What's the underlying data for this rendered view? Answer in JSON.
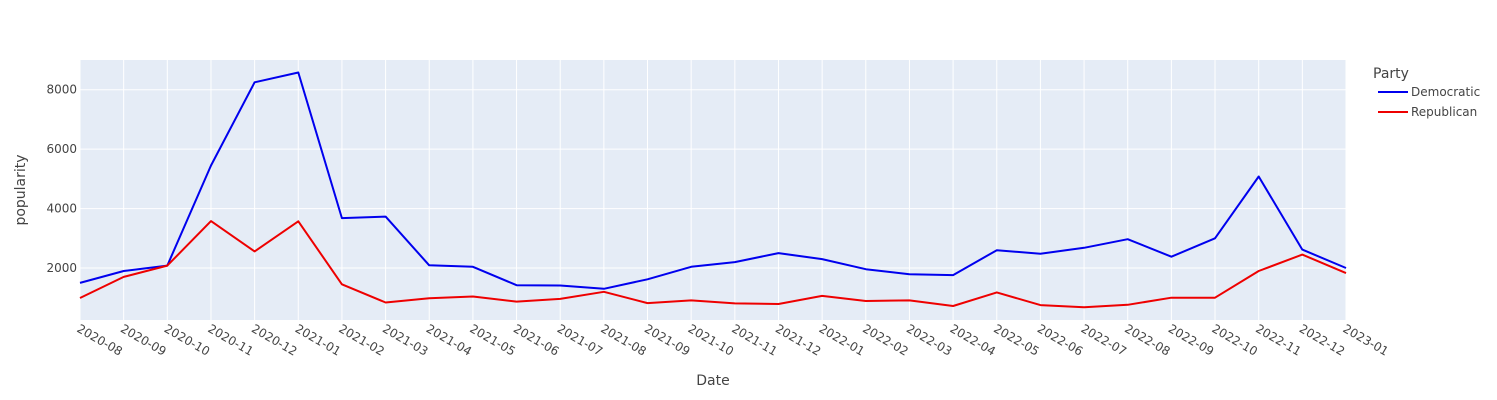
{
  "chart_data": {
    "type": "line",
    "xlabel": "Date",
    "ylabel": "popularity",
    "x_ticks": [
      "2020-08",
      "2020-09",
      "2020-10",
      "2020-11",
      "2020-12",
      "2021-01",
      "2021-02",
      "2021-03",
      "2021-04",
      "2021-05",
      "2021-06",
      "2021-07",
      "2021-08",
      "2021-09",
      "2021-10",
      "2021-11",
      "2021-12",
      "2022-01",
      "2022-02",
      "2022-03",
      "2022-04",
      "2022-05",
      "2022-06",
      "2022-07",
      "2022-08",
      "2022-09",
      "2022-10",
      "2022-11",
      "2022-12",
      "2023-01"
    ],
    "y_ticks": [
      2000,
      4000,
      6000,
      8000
    ],
    "y_tick_labels": [
      "2000",
      "4000",
      "6000",
      "8000"
    ],
    "ylim": [
      250,
      9000
    ],
    "grid": true,
    "legend": {
      "title": "Party",
      "placement": "right"
    },
    "x": [
      "2020-08",
      "2020-09",
      "2020-10",
      "2020-11",
      "2020-12",
      "2021-01",
      "2021-02",
      "2021-03",
      "2021-04",
      "2021-05",
      "2021-06",
      "2021-07",
      "2021-08",
      "2021-09",
      "2021-10",
      "2021-11",
      "2021-12",
      "2022-01",
      "2022-02",
      "2022-03",
      "2022-04",
      "2022-05",
      "2022-06",
      "2022-07",
      "2022-08",
      "2022-09",
      "2022-10",
      "2022-11",
      "2022-12",
      "2023-01"
    ],
    "series": [
      {
        "name": "Democratic",
        "color": "#0000ee",
        "values": [
          1500,
          1900,
          2080,
          5450,
          8250,
          8580,
          3680,
          3730,
          2090,
          2040,
          1420,
          1410,
          1300,
          1620,
          2040,
          2200,
          2500,
          2300,
          1960,
          1790,
          1760,
          2600,
          2480,
          2680,
          2970,
          2380,
          3000,
          5080,
          2620,
          2000
        ]
      },
      {
        "name": "Republican",
        "color": "#ee0000",
        "values": [
          990,
          1700,
          2080,
          3580,
          2560,
          3570,
          1450,
          840,
          980,
          1040,
          870,
          960,
          1200,
          820,
          910,
          810,
          790,
          1060,
          890,
          910,
          720,
          1180,
          750,
          680,
          760,
          1000,
          1000,
          1900,
          2450,
          1830
        ]
      }
    ]
  }
}
